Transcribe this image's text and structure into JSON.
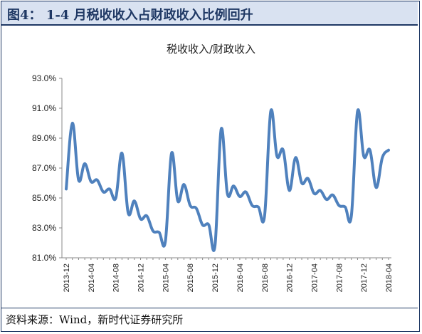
{
  "header": {
    "title": "图4： 1-4 月税收收入占财政收入比例回升"
  },
  "footer": {
    "source": "资料来源：Wind，新时代证券研究所"
  },
  "chart_data": {
    "type": "line",
    "title": "税收收入/财政收入",
    "xlabel": "",
    "ylabel": "",
    "ylim": [
      81.0,
      93.0
    ],
    "yticks": [
      "81.0%",
      "83.0%",
      "85.0%",
      "87.0%",
      "89.0%",
      "91.0%",
      "93.0%"
    ],
    "xtick_labels": [
      "2013-12",
      "2014-04",
      "2014-08",
      "2014-12",
      "2015-04",
      "2015-08",
      "2015-12",
      "2016-04",
      "2016-08",
      "2016-12",
      "2017-04",
      "2017-08",
      "2017-12",
      "2018-04"
    ],
    "grid": false,
    "legend": "none",
    "line_color": "#4f81bd",
    "x": [
      "2013-12",
      "2014-01",
      "2014-02",
      "2014-03",
      "2014-04",
      "2014-05",
      "2014-06",
      "2014-07",
      "2014-08",
      "2014-09",
      "2014-10",
      "2014-11",
      "2014-12",
      "2015-01",
      "2015-02",
      "2015-03",
      "2015-04",
      "2015-05",
      "2015-06",
      "2015-07",
      "2015-08",
      "2015-09",
      "2015-10",
      "2015-11",
      "2015-12",
      "2016-01",
      "2016-02",
      "2016-03",
      "2016-04",
      "2016-05",
      "2016-06",
      "2016-07",
      "2016-08",
      "2016-09",
      "2016-10",
      "2016-11",
      "2016-12",
      "2017-01",
      "2017-02",
      "2017-03",
      "2017-04",
      "2017-05",
      "2017-06",
      "2017-07",
      "2017-08",
      "2017-09",
      "2017-10",
      "2017-11",
      "2017-12",
      "2018-01",
      "2018-02",
      "2018-03",
      "2018-04"
    ],
    "series": [
      {
        "values": [
          85.6,
          90.0,
          86.2,
          87.3,
          86.1,
          86.2,
          85.4,
          85.6,
          85.0,
          88.0,
          84.0,
          84.8,
          83.6,
          83.8,
          82.8,
          82.7,
          82.1,
          88.0,
          84.8,
          85.9,
          84.5,
          84.3,
          83.2,
          83.2,
          81.8,
          89.6,
          85.3,
          85.8,
          85.1,
          85.4,
          84.5,
          84.4,
          83.8,
          90.8,
          87.8,
          88.2,
          85.5,
          87.7,
          86.0,
          86.3,
          85.3,
          85.5,
          84.9,
          85.2,
          84.5,
          84.4,
          83.8,
          90.8,
          87.8,
          88.2,
          85.7,
          87.7,
          88.2
        ]
      }
    ]
  }
}
